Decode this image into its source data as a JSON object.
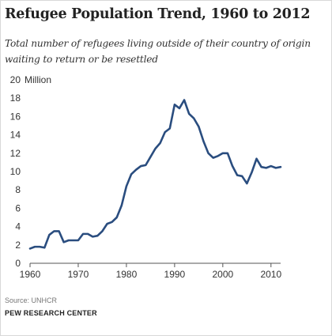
{
  "chart_data": {
    "type": "line",
    "title": "Refugee Population Trend, 1960 to 2012",
    "subtitle": "Total number of refugees living outside of their country of origin waiting to return or be resettled",
    "xlabel": "",
    "ylabel": "",
    "y_unit_label": "Million",
    "xlim": [
      1960,
      2012
    ],
    "ylim": [
      0,
      20
    ],
    "x_ticks": [
      1960,
      1970,
      1980,
      1990,
      2000,
      2010
    ],
    "y_ticks": [
      0,
      2,
      4,
      6,
      8,
      10,
      12,
      14,
      16,
      18,
      20
    ],
    "grid": false,
    "series": [
      {
        "color": "#2a4d7f",
        "x": [
          1960,
          1961,
          1962,
          1963,
          1964,
          1965,
          1966,
          1967,
          1968,
          1969,
          1970,
          1971,
          1972,
          1973,
          1974,
          1975,
          1976,
          1977,
          1978,
          1979,
          1980,
          1981,
          1982,
          1983,
          1984,
          1985,
          1986,
          1987,
          1988,
          1989,
          1990,
          1991,
          1992,
          1993,
          1994,
          1995,
          1996,
          1997,
          1998,
          1999,
          2000,
          2001,
          2002,
          2003,
          2004,
          2005,
          2006,
          2007,
          2008,
          2009,
          2010,
          2011,
          2012
        ],
        "y": [
          1.6,
          1.8,
          1.8,
          1.7,
          3.1,
          3.5,
          3.5,
          2.3,
          2.5,
          2.5,
          2.5,
          3.2,
          3.2,
          2.9,
          3.0,
          3.5,
          4.3,
          4.5,
          5.0,
          6.3,
          8.4,
          9.7,
          10.2,
          10.6,
          10.7,
          11.6,
          12.5,
          13.1,
          14.3,
          14.7,
          17.3,
          16.9,
          17.8,
          16.3,
          15.8,
          14.9,
          13.3,
          12.0,
          11.5,
          11.7,
          12.0,
          12.0,
          10.6,
          9.6,
          9.5,
          8.7,
          9.9,
          11.4,
          10.5,
          10.4,
          10.6,
          10.4,
          10.5
        ]
      }
    ]
  },
  "source": "Source: UNHCR",
  "brand": "PEW RESEARCH CENTER"
}
